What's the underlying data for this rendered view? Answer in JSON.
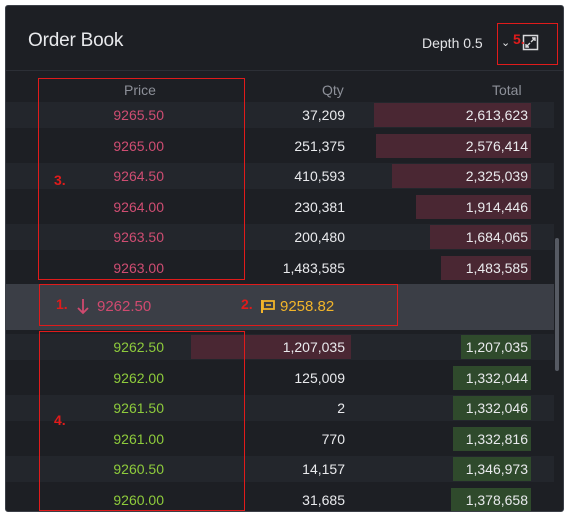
{
  "header": {
    "title": "Order Book",
    "depth_label": "Depth 0.5",
    "depth_caret": "⌄"
  },
  "columns": {
    "price": "Price",
    "qty": "Qty",
    "total": "Total"
  },
  "asks": [
    {
      "price": "9265.50",
      "qty": "37,209",
      "total": "2,613,623",
      "depth": 0.98
    },
    {
      "price": "9265.00",
      "qty": "251,375",
      "total": "2,576,414",
      "depth": 0.97
    },
    {
      "price": "9264.50",
      "qty": "410,593",
      "total": "2,325,039",
      "depth": 0.87
    },
    {
      "price": "9264.00",
      "qty": "230,381",
      "total": "1,914,446",
      "depth": 0.72
    },
    {
      "price": "9263.50",
      "qty": "200,480",
      "total": "1,684,065",
      "depth": 0.63
    },
    {
      "price": "9263.00",
      "qty": "1,483,585",
      "total": "1,483,585",
      "depth": 0.56
    }
  ],
  "spread": {
    "last_price": "9262.50",
    "mark_price": "9258.82"
  },
  "bids": [
    {
      "price": "9262.50",
      "qty": "1,207,035",
      "total": "1,207,035",
      "depth": 0.44
    },
    {
      "price": "9262.00",
      "qty": "125,009",
      "total": "1,332,044",
      "depth": 0.49
    },
    {
      "price": "9261.50",
      "qty": "2",
      "total": "1,332,046",
      "depth": 0.49
    },
    {
      "price": "9261.00",
      "qty": "770",
      "total": "1,332,816",
      "depth": 0.49
    },
    {
      "price": "9260.50",
      "qty": "14,157",
      "total": "1,346,973",
      "depth": 0.49
    },
    {
      "price": "9260.00",
      "qty": "31,685",
      "total": "1,378,658",
      "depth": 0.5
    }
  ],
  "annotations": [
    "1.",
    "2.",
    "3.",
    "4.",
    "5."
  ],
  "colors": {
    "ask": "#cf4d72",
    "bid": "#8ecb3c",
    "ask_bar": "#4a2733",
    "bid_bar": "#2f4a2c",
    "mark": "#f2b52a",
    "annotation": "#e01b1b"
  },
  "icons": {
    "expand": "expand-icon",
    "down_arrow": "arrow-down-icon",
    "mark_flag": "flag-icon"
  }
}
